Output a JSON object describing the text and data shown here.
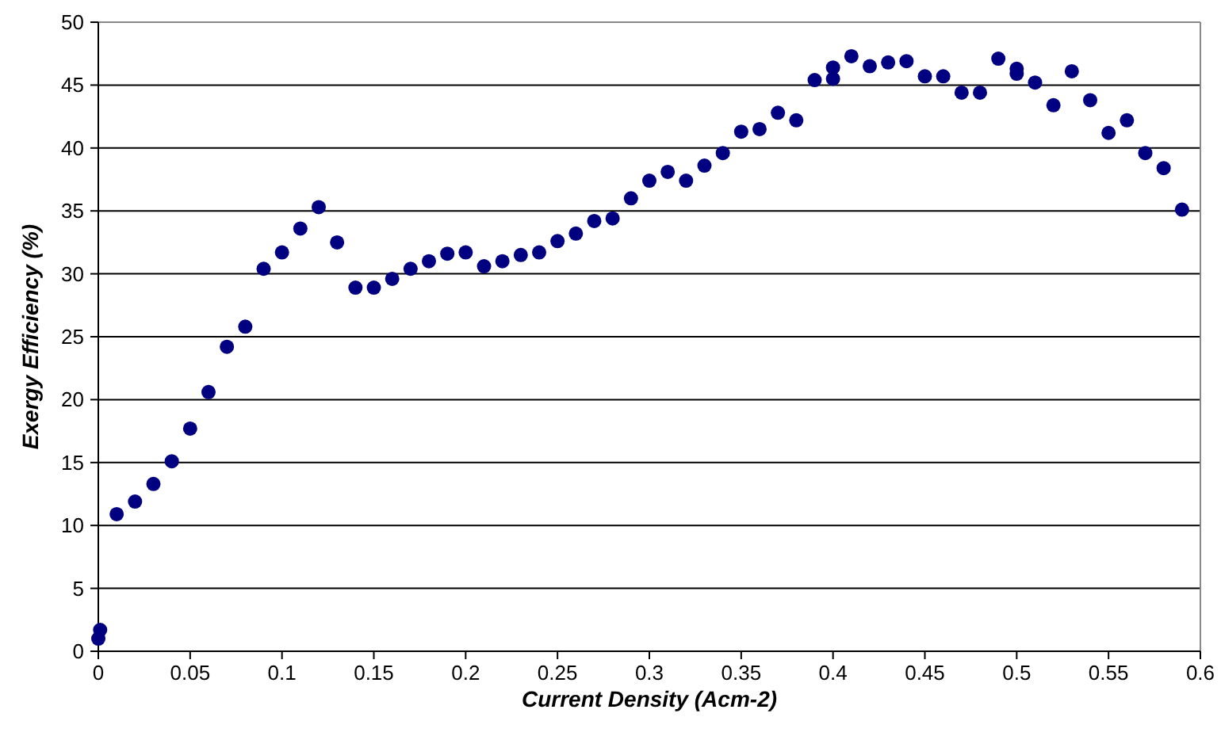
{
  "chart_data": {
    "type": "scatter",
    "xlabel": "Current Density (Acm-2)",
    "ylabel": "Exergy Efficiency (%)",
    "x": [
      0,
      0.001,
      0.01,
      0.02,
      0.03,
      0.04,
      0.05,
      0.06,
      0.07,
      0.08,
      0.09,
      0.1,
      0.11,
      0.12,
      0.13,
      0.14,
      0.15,
      0.16,
      0.17,
      0.18,
      0.19,
      0.2,
      0.21,
      0.22,
      0.23,
      0.24,
      0.25,
      0.26,
      0.27,
      0.28,
      0.29,
      0.3,
      0.31,
      0.32,
      0.33,
      0.34,
      0.35,
      0.36,
      0.37,
      0.38,
      0.39,
      0.4,
      0.4,
      0.41,
      0.42,
      0.43,
      0.44,
      0.45,
      0.46,
      0.47,
      0.48,
      0.49,
      0.5,
      0.5,
      0.51,
      0.52,
      0.53,
      0.54,
      0.55,
      0.56,
      0.57,
      0.58,
      0.59
    ],
    "series": [
      {
        "color": "#000080",
        "values": [
          1.0,
          1.7,
          10.9,
          11.9,
          13.3,
          15.1,
          17.7,
          20.6,
          24.2,
          25.8,
          30.4,
          31.7,
          33.6,
          35.3,
          32.5,
          28.9,
          28.9,
          29.6,
          30.4,
          31.0,
          31.6,
          31.7,
          30.6,
          31.0,
          31.5,
          31.7,
          32.6,
          33.2,
          34.2,
          34.4,
          36.0,
          37.4,
          38.1,
          37.4,
          38.6,
          39.6,
          41.3,
          41.5,
          42.8,
          42.2,
          45.4,
          45.5,
          46.4,
          47.3,
          46.5,
          46.8,
          46.9,
          45.7,
          45.7,
          44.4,
          44.4,
          47.1,
          46.3,
          45.9,
          45.2,
          43.4,
          46.1,
          43.8,
          41.2,
          42.2,
          39.6,
          38.4,
          35.1
        ]
      }
    ],
    "xlim": [
      0,
      0.6
    ],
    "xticks": [
      0,
      0.05,
      0.1,
      0.15,
      0.2,
      0.25,
      0.3,
      0.35,
      0.4,
      0.45,
      0.5,
      0.55,
      0.6
    ],
    "ylim": [
      0,
      50
    ],
    "yticks": [
      0,
      5,
      10,
      15,
      20,
      25,
      30,
      35,
      40,
      45,
      50
    ],
    "grid": "y",
    "marker": "circle"
  }
}
